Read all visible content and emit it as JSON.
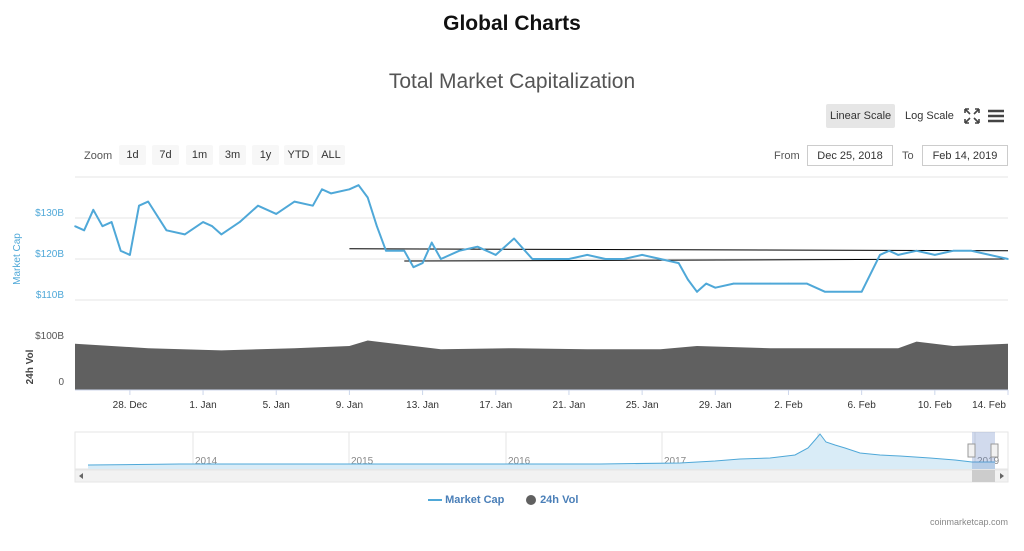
{
  "page": {
    "title": "Global Charts"
  },
  "chart_title": "Total Market Capitalization",
  "scale": {
    "linear_label": "Linear Scale",
    "log_label": "Log Scale",
    "active": "linear"
  },
  "zoom": {
    "label": "Zoom",
    "buttons": [
      "1d",
      "7d",
      "1m",
      "3m",
      "1y",
      "YTD",
      "ALL"
    ]
  },
  "range": {
    "from_label": "From",
    "from_value": "Dec 25, 2018",
    "to_label": "To",
    "to_value": "Feb 14, 2019"
  },
  "legend": {
    "market_cap": "Market Cap",
    "volume": "24h Vol"
  },
  "credits": "coinmarketcap.com",
  "icons": {
    "fullscreen": "fullscreen-icon",
    "menu": "hamburger-menu-icon"
  },
  "colors": {
    "market_cap_line": "#4fa8d8",
    "volume_fill": "#606060",
    "trendline": "#000000",
    "navigator_fill": "#d9ecf7"
  },
  "chart_data": {
    "type": "line",
    "title": "Total Market Capitalization",
    "xlabel": "",
    "ylabel": "Market Cap",
    "y2label": "24h Vol",
    "xlim": [
      "2018-12-25",
      "2019-02-14"
    ],
    "ylim": [
      100,
      140
    ],
    "y_ticks": [
      "$110B",
      "$120B",
      "$130B"
    ],
    "y2_ticks": [
      "$100B",
      "0"
    ],
    "x_ticks": [
      "28. Dec",
      "1. Jan",
      "5. Jan",
      "9. Jan",
      "13. Jan",
      "17. Jan",
      "21. Jan",
      "25. Jan",
      "29. Jan",
      "2. Feb",
      "6. Feb",
      "10. Feb",
      "14. Feb"
    ],
    "grid": true,
    "legend": "bottom-center",
    "series": [
      {
        "name": "Market Cap",
        "unit": "billion USD",
        "x": [
          "2018-12-25",
          "2018-12-25T12:00",
          "2018-12-26",
          "2018-12-26T12:00",
          "2018-12-27",
          "2018-12-27T12:00",
          "2018-12-28",
          "2018-12-28T12:00",
          "2018-12-29",
          "2018-12-30",
          "2018-12-31",
          "2019-01-01",
          "2019-01-01T12:00",
          "2019-01-02",
          "2019-01-03",
          "2019-01-04",
          "2019-01-05",
          "2019-01-06",
          "2019-01-07",
          "2019-01-07T12:00",
          "2019-01-08",
          "2019-01-09",
          "2019-01-09T12:00",
          "2019-01-10",
          "2019-01-10T12:00",
          "2019-01-11",
          "2019-01-12",
          "2019-01-12T12:00",
          "2019-01-13",
          "2019-01-13T12:00",
          "2019-01-14",
          "2019-01-15",
          "2019-01-16",
          "2019-01-17",
          "2019-01-18",
          "2019-01-19",
          "2019-01-20",
          "2019-01-20T12:00",
          "2019-01-21",
          "2019-01-22",
          "2019-01-23",
          "2019-01-24",
          "2019-01-25",
          "2019-01-26",
          "2019-01-27",
          "2019-01-27T12:00",
          "2019-01-28",
          "2019-01-28T12:00",
          "2019-01-29",
          "2019-01-30",
          "2019-01-31",
          "2019-02-01",
          "2019-02-02",
          "2019-02-03",
          "2019-02-04",
          "2019-02-05",
          "2019-02-06",
          "2019-02-07",
          "2019-02-07T12:00",
          "2019-02-08",
          "2019-02-09",
          "2019-02-10",
          "2019-02-11",
          "2019-02-12",
          "2019-02-13",
          "2019-02-14"
        ],
        "values": [
          128,
          127,
          132,
          128,
          129,
          122,
          121,
          133,
          134,
          127,
          126,
          129,
          128,
          126,
          129,
          133,
          131,
          134,
          133,
          137,
          136,
          137,
          138,
          135,
          128,
          122,
          122,
          118,
          119,
          124,
          120,
          122,
          123,
          121,
          125,
          120,
          120,
          120,
          120,
          121,
          120,
          120,
          121,
          120,
          119,
          115,
          112,
          114,
          113,
          114,
          114,
          114,
          114,
          114,
          112,
          112,
          112,
          121,
          122,
          121,
          122,
          121,
          122,
          122,
          121,
          120
        ]
      },
      {
        "name": "24h Vol",
        "unit": "billion USD",
        "x": [
          "2018-12-25",
          "2018-12-29",
          "2019-01-02",
          "2019-01-06",
          "2019-01-09",
          "2019-01-10",
          "2019-01-14",
          "2019-01-18",
          "2019-01-22",
          "2019-01-26",
          "2019-01-28",
          "2019-02-01",
          "2019-02-05",
          "2019-02-08",
          "2019-02-09",
          "2019-02-11",
          "2019-02-14"
        ],
        "values": [
          42,
          38,
          36,
          38,
          40,
          45,
          37,
          38,
          37,
          37,
          40,
          38,
          38,
          38,
          44,
          40,
          42
        ]
      }
    ],
    "annotations": [
      {
        "type": "trendline",
        "from": [
          "2019-01-09",
          122.5
        ],
        "to": [
          "2019-02-14",
          122
        ]
      },
      {
        "type": "trendline",
        "from": [
          "2019-01-12",
          119.5
        ],
        "to": [
          "2019-02-14",
          120
        ]
      }
    ],
    "navigator": {
      "x_ticks": [
        "2014",
        "2015",
        "2016",
        "2017",
        "2018",
        "2019"
      ]
    }
  }
}
